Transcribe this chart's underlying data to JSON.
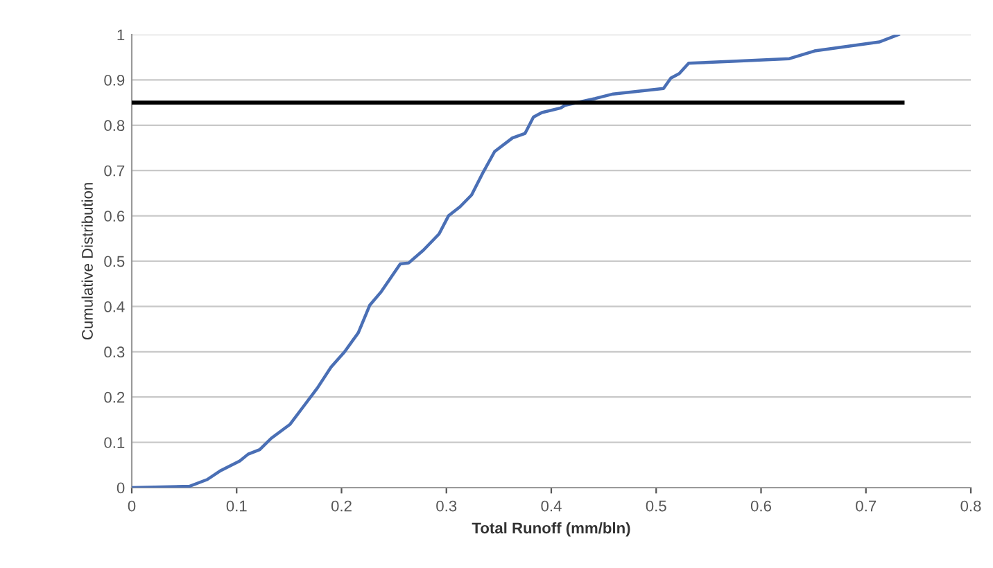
{
  "chart_data": {
    "type": "line",
    "xlabel": "Total Runoff (mm/bln)",
    "ylabel": "Cumulative Distribution",
    "xlim": [
      0,
      0.8
    ],
    "xticks": [
      0,
      0.1,
      0.2,
      0.3,
      0.4,
      0.5,
      0.6,
      0.7,
      0.8
    ],
    "ylim": [
      0,
      1
    ],
    "yticks": [
      0,
      0.1,
      0.2,
      0.3,
      0.4,
      0.5,
      0.6,
      0.7,
      0.8,
      0.9,
      1
    ],
    "grid": "y",
    "marker": "none",
    "line_style": "solid",
    "series": [
      {
        "color": "#4a6fb5",
        "x": [
          0,
          0.055,
          0.072,
          0.085,
          0.103,
          0.111,
          0.122,
          0.133,
          0.151,
          0.164,
          0.177,
          0.19,
          0.203,
          0.216,
          0.227,
          0.238,
          0.256,
          0.264,
          0.278,
          0.293,
          0.302,
          0.313,
          0.324,
          0.335,
          0.346,
          0.363,
          0.375,
          0.383,
          0.391,
          0.409,
          0.413,
          0.442,
          0.459,
          0.507,
          0.514,
          0.522,
          0.531,
          0.573,
          0.627,
          0.651,
          0.682,
          0.713,
          0.731
        ],
        "values": [
          0,
          0.003,
          0.018,
          0.038,
          0.059,
          0.074,
          0.084,
          0.109,
          0.14,
          0.18,
          0.22,
          0.266,
          0.3,
          0.342,
          0.403,
          0.433,
          0.494,
          0.496,
          0.524,
          0.56,
          0.6,
          0.62,
          0.646,
          0.696,
          0.742,
          0.772,
          0.782,
          0.818,
          0.828,
          0.838,
          0.844,
          0.859,
          0.869,
          0.881,
          0.904,
          0.914,
          0.937,
          0.941,
          0.947,
          0.964,
          0.974,
          0.984,
          1.0
        ]
      },
      {
        "color": "#000000",
        "x": [
          0,
          0.735
        ],
        "values": [
          0.85,
          0.85
        ]
      }
    ]
  }
}
